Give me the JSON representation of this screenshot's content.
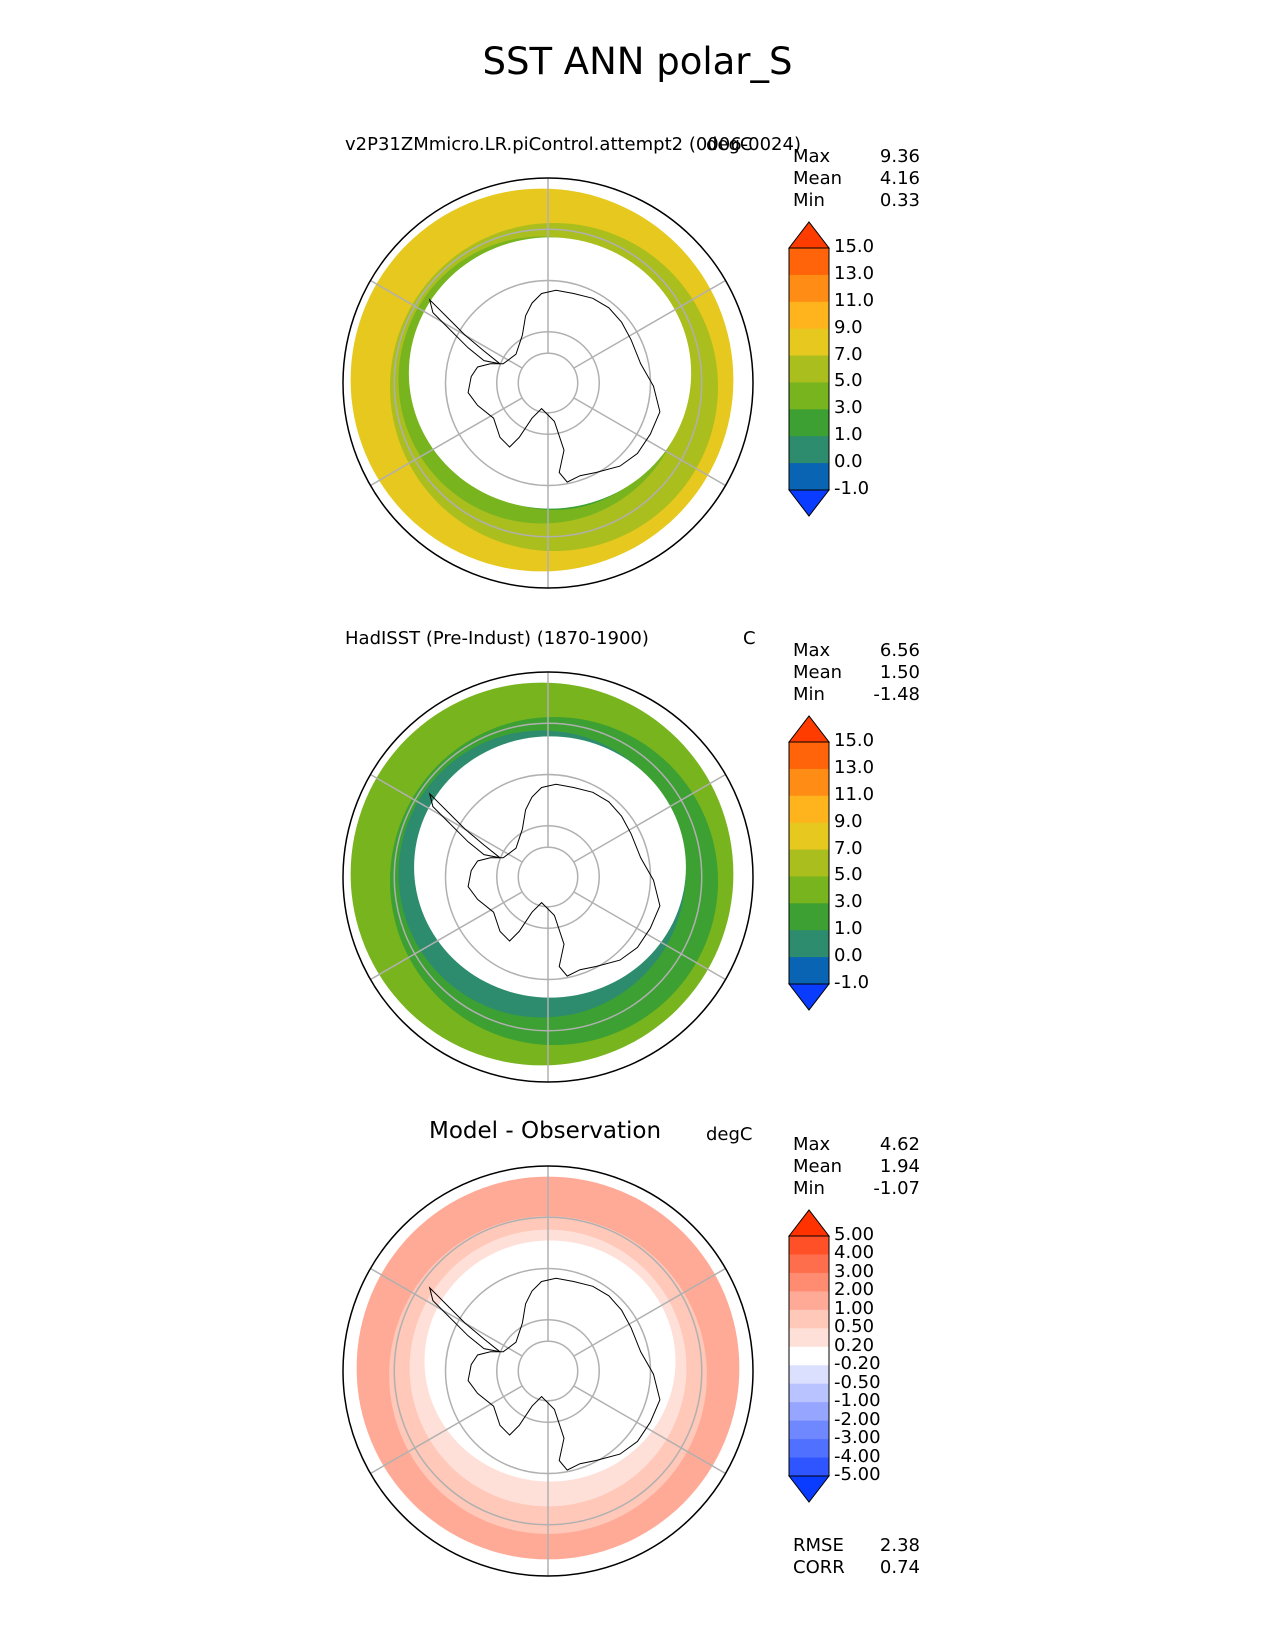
{
  "figure": {
    "title": "SST ANN polar_S"
  },
  "chart_data": [
    {
      "type": "heatmap",
      "projection": "south-polar-stereographic",
      "title": "v2P31ZMmicro.LR.piControl.attempt2 (0006-0024)",
      "units": "degC",
      "stats": [
        {
          "label": "Max",
          "value": "9.36"
        },
        {
          "label": "Mean",
          "value": "4.16"
        },
        {
          "label": "Min",
          "value": "0.33"
        }
      ],
      "colorbar": {
        "levels": [
          "-1.0",
          "0.0",
          "1.0",
          "3.0",
          "5.0",
          "7.0",
          "9.0",
          "11.0",
          "13.0",
          "15.0"
        ],
        "colors": [
          "#0a3cff",
          "#0a64b4",
          "#2e8c6e",
          "#3ca032",
          "#78b41e",
          "#aabe1e",
          "#e6c81e",
          "#ffb41e",
          "#ff8c14",
          "#ff640a",
          "#ff3c00"
        ],
        "extend": "both"
      },
      "field_rings": [
        {
          "lat": -55,
          "color": "#e6c81e"
        },
        {
          "lat": -58,
          "color": "#aabe1e"
        },
        {
          "lat": -62,
          "color": "#78b41e"
        },
        {
          "lat": -66,
          "color": "#3ca032"
        },
        {
          "lat": -69,
          "color": "#2e8c6e"
        }
      ],
      "ice_edge_lat": -63
    },
    {
      "type": "heatmap",
      "projection": "south-polar-stereographic",
      "title": "HadISST (Pre-Indust) (1870-1900)",
      "units": "C",
      "stats": [
        {
          "label": "Max",
          "value": "6.56"
        },
        {
          "label": "Mean",
          "value": "1.50"
        },
        {
          "label": "Min",
          "value": "-1.48"
        }
      ],
      "colorbar": {
        "levels": [
          "-1.0",
          "0.0",
          "1.0",
          "3.0",
          "5.0",
          "7.0",
          "9.0",
          "11.0",
          "13.0",
          "15.0"
        ],
        "colors": [
          "#0a3cff",
          "#0a64b4",
          "#2e8c6e",
          "#3ca032",
          "#78b41e",
          "#aabe1e",
          "#e6c81e",
          "#ffb41e",
          "#ff8c14",
          "#ff640a",
          "#ff3c00"
        ],
        "extend": "both"
      },
      "field_rings": [
        {
          "lat": -55,
          "color": "#78b41e"
        },
        {
          "lat": -58,
          "color": "#3ca032"
        },
        {
          "lat": -62,
          "color": "#2e8c6e"
        },
        {
          "lat": -69,
          "color": "#0a64b4"
        }
      ],
      "ice_edge_lat": -64
    },
    {
      "type": "heatmap",
      "projection": "south-polar-stereographic",
      "title": "Model - Observation",
      "units": "degC",
      "stats": [
        {
          "label": "Max",
          "value": "4.62"
        },
        {
          "label": "Mean",
          "value": "1.94"
        },
        {
          "label": "Min",
          "value": "-1.07"
        }
      ],
      "colorbar": {
        "levels": [
          "-5.00",
          "-4.00",
          "-3.00",
          "-2.00",
          "-1.00",
          "-0.50",
          "-0.20",
          "0.20",
          "0.50",
          "1.00",
          "2.00",
          "3.00",
          "4.00",
          "5.00"
        ],
        "colors": [
          "#0a3cff",
          "#2e55ff",
          "#5070ff",
          "#7088ff",
          "#96a5ff",
          "#b8c3ff",
          "#dce0ff",
          "#ffffff",
          "#ffe0d8",
          "#ffc8b8",
          "#ffaa96",
          "#ff8c70",
          "#ff6e4c",
          "#ff5028",
          "#ff3200"
        ],
        "extend": "both"
      },
      "field_rings": [
        {
          "lat": -55,
          "color": "#ffaa96"
        },
        {
          "lat": -59,
          "color": "#ffc8b8"
        },
        {
          "lat": -63,
          "color": "#ffe0d8"
        }
      ],
      "ice_edge_lat": -66,
      "extra_stats": [
        {
          "label": "RMSE",
          "value": "2.38"
        },
        {
          "label": "CORR",
          "value": "0.74"
        }
      ]
    }
  ]
}
